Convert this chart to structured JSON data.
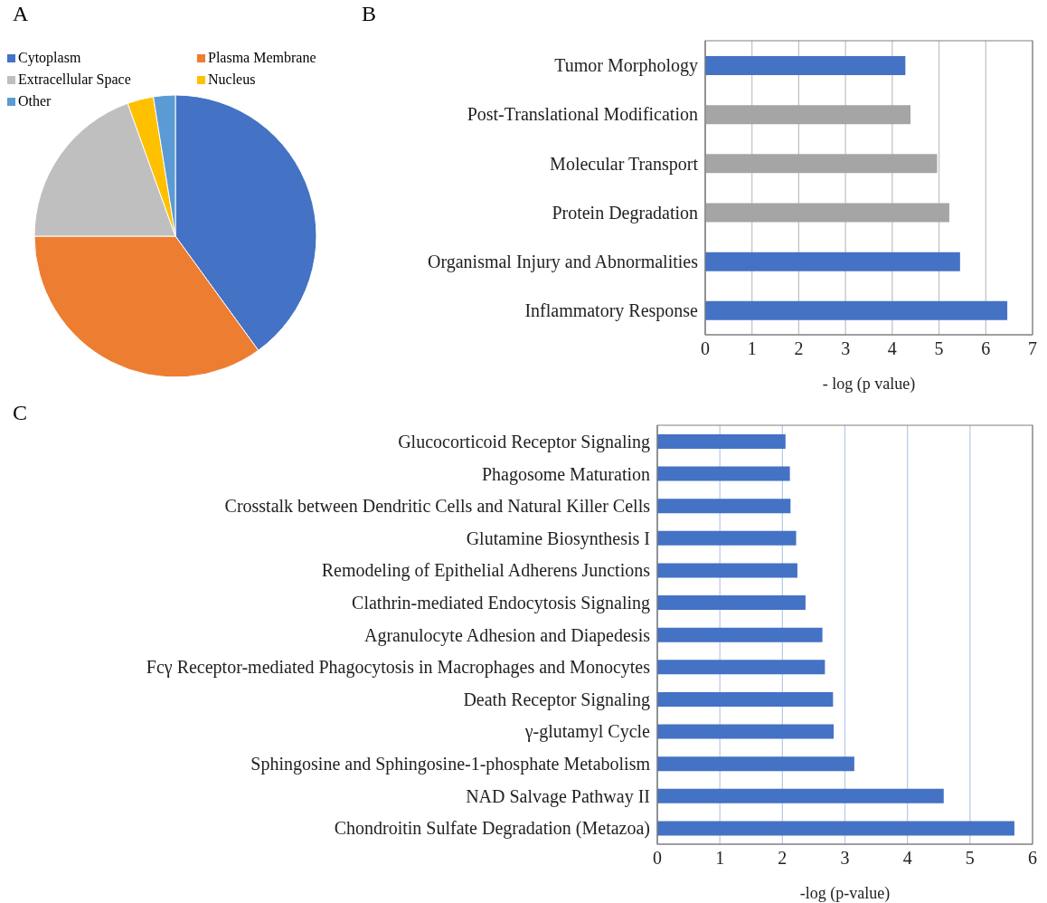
{
  "chart_data": [
    {
      "type": "pie",
      "title": "A",
      "categories": [
        "Cytoplasm",
        "Plasma Membrane",
        "Extracellular Space",
        "Nucleus",
        "Other"
      ],
      "values": [
        40,
        35,
        19.5,
        3,
        2.5
      ],
      "colors": [
        "#4472c4",
        "#ed7d31",
        "#bfbfbf",
        "#ffc000",
        "#5b9bd5"
      ],
      "legend": "top"
    },
    {
      "type": "bar",
      "title": "B",
      "orientation": "horizontal",
      "categories": [
        "Tumor Morphology",
        "Post-Translational Modification",
        "Molecular Transport",
        "Protein Degradation",
        "Organismal Injury and Abnormalities",
        "Inflammatory Response"
      ],
      "values": [
        4.28,
        4.39,
        4.96,
        5.22,
        5.45,
        6.46
      ],
      "colors": [
        "#4472c4",
        "#a5a5a5",
        "#a5a5a5",
        "#a5a5a5",
        "#4472c4",
        "#4472c4"
      ],
      "xlabel": "- log (p value)",
      "xlim": [
        0,
        7
      ],
      "xticks": [
        0,
        1,
        2,
        3,
        4,
        5,
        6,
        7
      ],
      "grid": "x"
    },
    {
      "type": "bar",
      "title": "C",
      "orientation": "horizontal",
      "categories": [
        "Glucocorticoid Receptor Signaling",
        "Phagosome Maturation",
        "Crosstalk between Dendritic Cells and Natural Killer Cells",
        "Glutamine Biosynthesis I",
        "Remodeling of Epithelial Adherens Junctions",
        "Clathrin-mediated Endocytosis Signaling",
        "Agranulocyte Adhesion and Diapedesis",
        "Fcγ Receptor-mediated Phagocytosis in Macrophages and Monocytes",
        "Death Receptor Signaling",
        "γ-glutamyl Cycle",
        "Sphingosine and Sphingosine-1-phosphate Metabolism",
        "NAD Salvage Pathway II",
        "Chondroitin Sulfate Degradation (Metazoa)"
      ],
      "values": [
        2.05,
        2.12,
        2.13,
        2.22,
        2.24,
        2.37,
        2.64,
        2.68,
        2.81,
        2.82,
        3.15,
        4.58,
        5.71
      ],
      "color": "#4472c4",
      "xlabel": "-log (p-value)",
      "xlim": [
        0,
        6
      ],
      "xticks": [
        0,
        1,
        2,
        3,
        4,
        5,
        6
      ],
      "grid": "x"
    }
  ]
}
